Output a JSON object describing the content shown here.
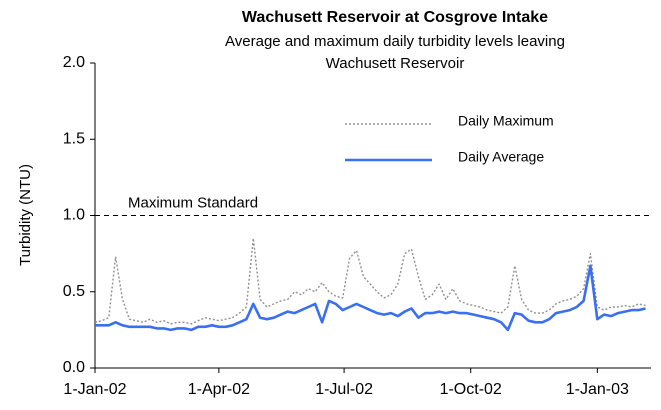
{
  "chart_data": {
    "type": "line",
    "title": "Wachusett Reservoir at Cosgrove Intake",
    "subtitle": "Average and maximum daily turbidity levels leaving Wachusett Reservoir",
    "y_label": "Turbidity (NTU)",
    "x": [
      "2002-01-01",
      "2002-01-06",
      "2002-01-11",
      "2002-01-16",
      "2002-01-21",
      "2002-01-26",
      "2002-01-31",
      "2002-02-05",
      "2002-02-10",
      "2002-02-15",
      "2002-02-20",
      "2002-02-25",
      "2002-03-02",
      "2002-03-07",
      "2002-03-12",
      "2002-03-17",
      "2002-03-22",
      "2002-03-27",
      "2002-04-01",
      "2002-04-06",
      "2002-04-11",
      "2002-04-16",
      "2002-04-21",
      "2002-04-26",
      "2002-05-01",
      "2002-05-06",
      "2002-05-11",
      "2002-05-16",
      "2002-05-21",
      "2002-05-26",
      "2002-05-31",
      "2002-06-05",
      "2002-06-10",
      "2002-06-15",
      "2002-06-20",
      "2002-06-25",
      "2002-06-30",
      "2002-07-05",
      "2002-07-10",
      "2002-07-15",
      "2002-07-20",
      "2002-07-25",
      "2002-07-30",
      "2002-08-04",
      "2002-08-09",
      "2002-08-14",
      "2002-08-19",
      "2002-08-24",
      "2002-08-29",
      "2002-09-03",
      "2002-09-08",
      "2002-09-13",
      "2002-09-18",
      "2002-09-23",
      "2002-09-28",
      "2002-10-03",
      "2002-10-08",
      "2002-10-13",
      "2002-10-18",
      "2002-10-23",
      "2002-10-28",
      "2002-11-02",
      "2002-11-07",
      "2002-11-12",
      "2002-11-17",
      "2002-11-22",
      "2002-11-27",
      "2002-12-02",
      "2002-12-07",
      "2002-12-12",
      "2002-12-17",
      "2002-12-22",
      "2002-12-27",
      "2003-01-01",
      "2003-01-06",
      "2003-01-11",
      "2003-01-16",
      "2003-01-21",
      "2003-01-26",
      "2003-01-31",
      "2003-02-05"
    ],
    "series": [
      {
        "name": "Daily Maximum",
        "color": "#909090",
        "style": "dotted",
        "values": [
          0.3,
          0.31,
          0.33,
          0.73,
          0.45,
          0.32,
          0.31,
          0.3,
          0.32,
          0.3,
          0.31,
          0.29,
          0.3,
          0.3,
          0.29,
          0.31,
          0.33,
          0.32,
          0.31,
          0.32,
          0.33,
          0.36,
          0.4,
          0.85,
          0.45,
          0.4,
          0.42,
          0.44,
          0.45,
          0.5,
          0.48,
          0.52,
          0.5,
          0.56,
          0.5,
          0.47,
          0.46,
          0.72,
          0.77,
          0.6,
          0.55,
          0.5,
          0.46,
          0.48,
          0.55,
          0.75,
          0.78,
          0.6,
          0.45,
          0.48,
          0.55,
          0.45,
          0.52,
          0.44,
          0.42,
          0.41,
          0.4,
          0.38,
          0.37,
          0.36,
          0.4,
          0.67,
          0.45,
          0.38,
          0.36,
          0.36,
          0.38,
          0.42,
          0.44,
          0.45,
          0.47,
          0.52,
          0.75,
          0.4,
          0.38,
          0.4,
          0.4,
          0.41,
          0.4,
          0.42,
          0.41
        ]
      },
      {
        "name": "Daily Average",
        "color": "#3a6ff0",
        "style": "solid",
        "values": [
          0.28,
          0.28,
          0.28,
          0.3,
          0.28,
          0.27,
          0.27,
          0.27,
          0.27,
          0.26,
          0.26,
          0.25,
          0.26,
          0.26,
          0.25,
          0.27,
          0.27,
          0.28,
          0.27,
          0.27,
          0.28,
          0.3,
          0.32,
          0.42,
          0.33,
          0.32,
          0.33,
          0.35,
          0.37,
          0.36,
          0.38,
          0.4,
          0.42,
          0.3,
          0.44,
          0.42,
          0.38,
          0.4,
          0.42,
          0.4,
          0.38,
          0.36,
          0.35,
          0.36,
          0.34,
          0.37,
          0.39,
          0.33,
          0.36,
          0.36,
          0.37,
          0.36,
          0.37,
          0.36,
          0.36,
          0.35,
          0.34,
          0.33,
          0.32,
          0.3,
          0.25,
          0.36,
          0.35,
          0.31,
          0.3,
          0.3,
          0.32,
          0.36,
          0.37,
          0.38,
          0.4,
          0.44,
          0.67,
          0.32,
          0.35,
          0.34,
          0.36,
          0.37,
          0.38,
          0.38,
          0.39
        ]
      }
    ],
    "xlim": [
      "2002-01-01",
      "2003-02-09"
    ],
    "xticks": [
      {
        "value": "2002-01-01",
        "label": "1-Jan-02"
      },
      {
        "value": "2002-04-01",
        "label": "1-Apr-02"
      },
      {
        "value": "2002-07-01",
        "label": "1-Jul-02"
      },
      {
        "value": "2002-10-01",
        "label": "1-Oct-02"
      },
      {
        "value": "2003-01-01",
        "label": "1-Jan-03"
      }
    ],
    "ylim": [
      0,
      2
    ],
    "yticks": [
      {
        "value": 0,
        "label": "0.0"
      },
      {
        "value": 0.5,
        "label": "0.5"
      },
      {
        "value": 1,
        "label": "1.0"
      },
      {
        "value": 1.5,
        "label": "1.5"
      },
      {
        "value": 2,
        "label": "2.0"
      }
    ],
    "reference_line": {
      "value": 1,
      "label": "Maximum Standard"
    },
    "legend": "upper right",
    "grid": false
  }
}
